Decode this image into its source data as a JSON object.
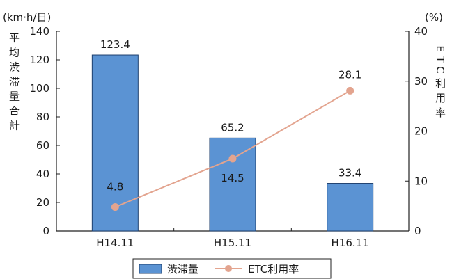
{
  "chart_data": {
    "type": "bar",
    "categories": [
      "H14.11",
      "H15.11",
      "H16.11"
    ],
    "series": [
      {
        "name": "渋滞量",
        "kind": "bar",
        "axis": "left",
        "values": [
          123.4,
          65.2,
          33.4
        ],
        "labels": [
          "123.4",
          "65.2",
          "33.4"
        ],
        "color": "#5b93d3"
      },
      {
        "name": "ETC利用率",
        "kind": "line",
        "axis": "right",
        "values": [
          4.8,
          14.5,
          28.1
        ],
        "labels": [
          "4.8",
          "14.5",
          "28.1"
        ],
        "color": "#e3a48f"
      }
    ],
    "y_left": {
      "unit": "(km·h/日)",
      "label": "平均渋滞量合計",
      "ylim": [
        0,
        140
      ],
      "ticks": [
        "0",
        "20",
        "40",
        "60",
        "80",
        "100",
        "120",
        "140"
      ]
    },
    "y_right": {
      "unit": "(%)",
      "label": "ETC利用率",
      "ylim": [
        0,
        40
      ],
      "ticks": [
        "0",
        "10",
        "20",
        "30",
        "40"
      ]
    },
    "grid": false,
    "legend": "bottom"
  }
}
